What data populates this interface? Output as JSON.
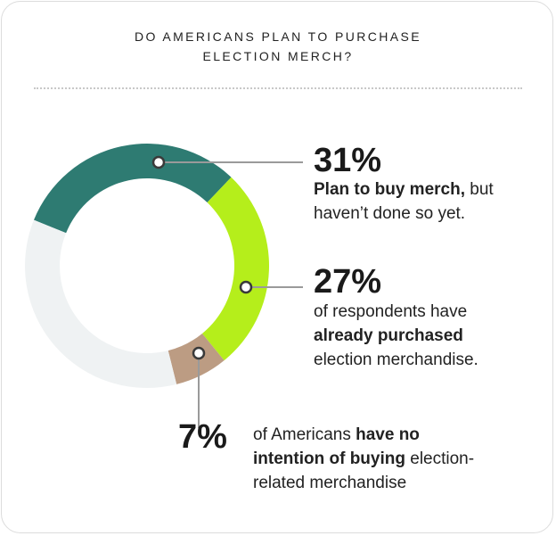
{
  "title_line1": "DO AMERICANS PLAN TO PURCHASE",
  "title_line2": "ELECTION MERCH?",
  "colors": {
    "teal": "#2e7b72",
    "lime": "#b5ee1b",
    "tan": "#bc9c83",
    "empty": "#eff2f3",
    "leader": "#9a9a9a"
  },
  "chart_data": {
    "type": "pie",
    "variant": "donut",
    "slices": [
      {
        "label": "Plan to buy merch",
        "value": 31,
        "color": "#2e7b72"
      },
      {
        "label": "already purchased",
        "value": 27,
        "color": "#b5ee1b"
      },
      {
        "label": "have no intention of buying",
        "value": 7,
        "color": "#bc9c83"
      },
      {
        "label": "",
        "value": 35,
        "color": "#eff2f3"
      }
    ]
  },
  "callouts": {
    "a": {
      "pct": "31%",
      "bold": "Plan to buy merch,",
      "rest1": " but",
      "line2": "haven’t done so yet."
    },
    "b": {
      "pct": "27%",
      "line1": "of respondents have",
      "bold": "already purchased",
      "line3": "election merchandise."
    },
    "c": {
      "pct": "7%",
      "pre": "of Americans ",
      "bold1": "have no",
      "bold2": "intention of buying",
      "rest2": " election-",
      "line3": "related merchandise"
    }
  }
}
